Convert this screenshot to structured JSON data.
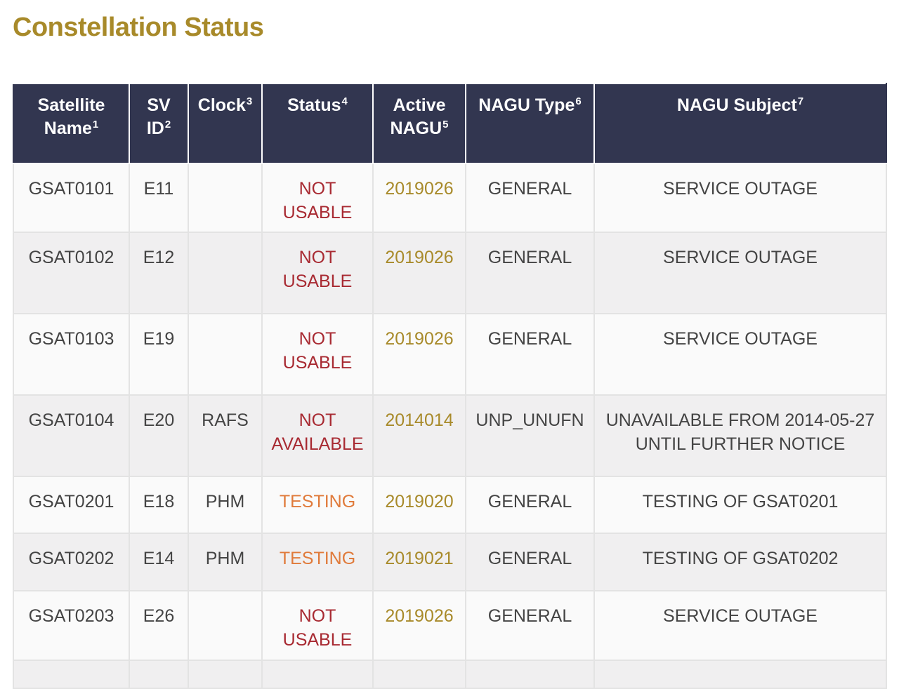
{
  "title": "Constellation Status",
  "colors": {
    "title": "#a88a2a",
    "header_bg": "#323650",
    "not_usable": "#a82a32",
    "testing": "#e07a3a",
    "nagu": "#a88a2a"
  },
  "columns": [
    {
      "line1": "Satellite",
      "line2": "Name",
      "sup": "1"
    },
    {
      "line1": "SV",
      "line2": "ID",
      "sup": "2"
    },
    {
      "line1": "Clock",
      "line2": "",
      "sup": "3"
    },
    {
      "line1": "Status",
      "line2": "",
      "sup": "4"
    },
    {
      "line1": "Active",
      "line2": "NAGU",
      "sup": "5"
    },
    {
      "line1": "NAGU Type",
      "line2": "",
      "sup": "6"
    },
    {
      "line1": "NAGU Subject",
      "line2": "",
      "sup": "7"
    }
  ],
  "rows": [
    {
      "name": "GSAT0101",
      "sv": "E11",
      "clock": "",
      "status1": "NOT",
      "status2": "USABLE",
      "nagu": "2019026",
      "type": "GENERAL",
      "subject1": "SERVICE OUTAGE",
      "subject2": ""
    },
    {
      "name": "GSAT0102",
      "sv": "E12",
      "clock": "",
      "status1": "NOT",
      "status2": "USABLE",
      "nagu": "2019026",
      "type": "GENERAL",
      "subject1": "SERVICE OUTAGE",
      "subject2": ""
    },
    {
      "name": "GSAT0103",
      "sv": "E19",
      "clock": "",
      "status1": "NOT",
      "status2": "USABLE",
      "nagu": "2019026",
      "type": "GENERAL",
      "subject1": "SERVICE OUTAGE",
      "subject2": ""
    },
    {
      "name": "GSAT0104",
      "sv": "E20",
      "clock": "RAFS",
      "status1": "NOT",
      "status2": "AVAILABLE",
      "nagu": "2014014",
      "type": "UNP_UNUFN",
      "subject1": "UNAVAILABLE FROM 2014-05-27",
      "subject2": "UNTIL FURTHER NOTICE"
    },
    {
      "name": "GSAT0201",
      "sv": "E18",
      "clock": "PHM",
      "status1": "TESTING",
      "status2": "",
      "nagu": "2019020",
      "type": "GENERAL",
      "subject1": "TESTING OF GSAT0201",
      "subject2": ""
    },
    {
      "name": "GSAT0202",
      "sv": "E14",
      "clock": "PHM",
      "status1": "TESTING",
      "status2": "",
      "nagu": "2019021",
      "type": "GENERAL",
      "subject1": "TESTING OF GSAT0202",
      "subject2": ""
    },
    {
      "name": "GSAT0203",
      "sv": "E26",
      "clock": "",
      "status1": "NOT",
      "status2": "USABLE",
      "nagu": "2019026",
      "type": "GENERAL",
      "subject1": "SERVICE OUTAGE",
      "subject2": ""
    },
    {
      "name": "",
      "sv": "",
      "clock": "",
      "status1": "",
      "status2": "",
      "nagu": "",
      "type": "",
      "subject1": "",
      "subject2": ""
    }
  ]
}
